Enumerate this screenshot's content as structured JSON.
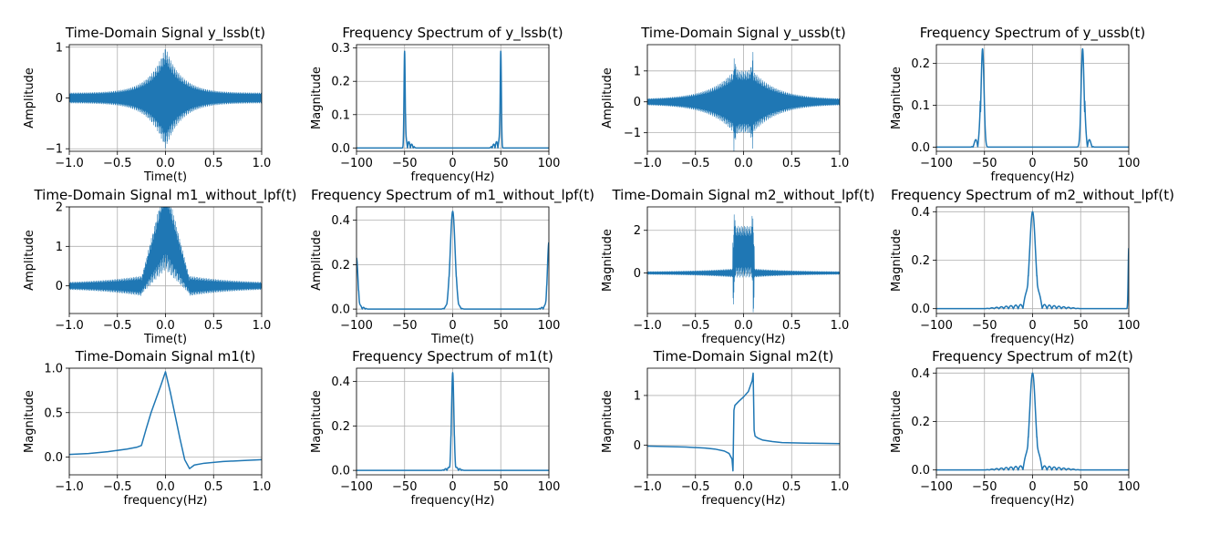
{
  "colors": {
    "series": "#1f77b4",
    "grid": "#b0b0b0"
  },
  "chart_data": [
    {
      "type": "line",
      "title": "Time-Domain Signal y_lssb(t)",
      "xlabel": "Time(t)",
      "ylabel": "Amplitude",
      "xlim": [
        -1,
        1
      ],
      "ylim": [
        -1.05,
        1.05
      ],
      "grid": true,
      "xticks": [
        -1.0,
        -0.5,
        0.0,
        0.5,
        1.0
      ],
      "xtick_labels": [
        "−1.0",
        "−0.5",
        "0.0",
        "0.5",
        "1.0"
      ],
      "yticks": [
        -1,
        0,
        1
      ],
      "ytick_labels": [
        "−1",
        "0",
        "1"
      ],
      "shape": "oscillation",
      "envelope": "exp_decay",
      "peak": 1.0,
      "tail": 0.1,
      "decay": 6,
      "center_offset": 0
    },
    {
      "type": "line",
      "title": "Frequency Spectrum of y_lssb(t)",
      "xlabel": "frequency(Hz)",
      "ylabel": "Magnitude",
      "xlim": [
        -100,
        100
      ],
      "ylim": [
        -0.01,
        0.31
      ],
      "grid": true,
      "xticks": [
        -100,
        -50,
        0,
        50,
        100
      ],
      "xtick_labels": [
        "−100",
        "−50",
        "0",
        "50",
        "100"
      ],
      "yticks": [
        0,
        0.1,
        0.2,
        0.3
      ],
      "ytick_labels": [
        "0.0",
        "0.1",
        "0.2",
        "0.3"
      ],
      "shape": "peaks",
      "baseline": 0,
      "peaks": [
        {
          "x": -50,
          "height": 0.29,
          "width": 0.6,
          "side": "right",
          "ripple": 0.03
        },
        {
          "x": 50,
          "height": 0.29,
          "width": 0.6,
          "side": "left",
          "ripple": 0.03
        }
      ]
    },
    {
      "type": "line",
      "title": "Time-Domain Signal y_ussb(t)",
      "xlabel": "",
      "ylabel": "Amplitude",
      "xlim": [
        -1,
        1
      ],
      "ylim": [
        -1.6,
        1.85
      ],
      "grid": true,
      "xticks": [
        -1.0,
        -0.5,
        0.0,
        0.5,
        1.0
      ],
      "xtick_labels": [
        "−1.0",
        "−0.5",
        "0.0",
        "0.5",
        "1.0"
      ],
      "yticks": [
        -1,
        0,
        1
      ],
      "ytick_labels": [
        "−1",
        "0",
        "1"
      ],
      "shape": "oscillation",
      "envelope": "box_decay",
      "peak": 1.7,
      "plateau": 1.0,
      "edge": 0.1,
      "tail": 0.08,
      "decay": 4
    },
    {
      "type": "line",
      "title": "Frequency Spectrum of y_ussb(t)",
      "xlabel": "frequency(Hz)",
      "ylabel": "Magnitude",
      "xlim": [
        -100,
        100
      ],
      "ylim": [
        -0.01,
        0.245
      ],
      "grid": true,
      "xticks": [
        -100,
        -50,
        0,
        50,
        100
      ],
      "xtick_labels": [
        "−100",
        "−50",
        "0",
        "50",
        "100"
      ],
      "yticks": [
        0,
        0.1,
        0.2
      ],
      "ytick_labels": [
        "0.0",
        "0.1",
        "0.2"
      ],
      "shape": "peaks",
      "baseline": 0,
      "peaks": [
        {
          "x": -52,
          "height": 0.235,
          "width": 1.5,
          "side": "left",
          "ripple": 0.045,
          "ripple_period": 5
        },
        {
          "x": 52,
          "height": 0.235,
          "width": 1.5,
          "side": "right",
          "ripple": 0.045,
          "ripple_period": 5
        }
      ]
    },
    {
      "type": "line",
      "title": "Time-Domain Signal m1_without_lpf(t)",
      "xlabel": "Time(t)",
      "ylabel": "Amplitude",
      "xlim": [
        -1,
        1
      ],
      "ylim": [
        -0.7,
        2.0
      ],
      "grid": true,
      "xticks": [
        -1.0,
        -0.5,
        0.0,
        0.5,
        1.0
      ],
      "xtick_labels": [
        "−1.0",
        "−0.5",
        "0.0",
        "0.5",
        "1.0"
      ],
      "yticks": [
        0,
        1,
        2
      ],
      "ytick_labels": [
        "0",
        "1",
        "2"
      ],
      "shape": "oscillation_offset",
      "center_line": "triangle",
      "peak": 1.9,
      "edge": 0.25,
      "amp": 0.2,
      "tail": 0.1
    },
    {
      "type": "line",
      "title": "Frequency Spectrum of m1_without_lpf(t)",
      "xlabel": "Time(t)",
      "ylabel": "Amplitude",
      "xlim": [
        -100,
        100
      ],
      "ylim": [
        -0.02,
        0.46
      ],
      "grid": true,
      "xticks": [
        -100,
        -50,
        0,
        50,
        100
      ],
      "xtick_labels": [
        "−100",
        "−50",
        "0",
        "50",
        "100"
      ],
      "yticks": [
        0,
        0.2,
        0.4
      ],
      "ytick_labels": [
        "0.0",
        "0.2",
        "0.4"
      ],
      "shape": "peaks",
      "baseline": 0,
      "peaks": [
        {
          "x": 0,
          "height": 0.44,
          "width": 2.5,
          "side": "both",
          "ripple": 0.02
        },
        {
          "x": -100,
          "height": 0.23,
          "width": 1.5,
          "side": "right",
          "ripple": 0.02
        },
        {
          "x": 100,
          "height": 0.3,
          "width": 1.5,
          "side": "left",
          "ripple": 0.02
        }
      ]
    },
    {
      "type": "line",
      "title": "Time-Domain Signal m2_without_lpf(t)",
      "xlabel": "frequency(Hz)",
      "ylabel": "Magnitude",
      "xlim": [
        -1,
        1
      ],
      "ylim": [
        -1.9,
        3.1
      ],
      "grid": true,
      "xticks": [
        -1.0,
        -0.5,
        0.0,
        0.5,
        1.0
      ],
      "xtick_labels": [
        "−1.0",
        "−0.5",
        "0.0",
        "0.5",
        "1.0"
      ],
      "yticks": [
        0,
        2
      ],
      "ytick_labels": [
        "0",
        "2"
      ],
      "shape": "oscillation_offset",
      "center_line": "box",
      "peak": 2.9,
      "plateau": 1.0,
      "edge": 0.1,
      "amp": 0.15,
      "tail": 0.08
    },
    {
      "type": "line",
      "title": "Frequency Spectrum of m2_without_lpf(t)",
      "xlabel": "frequency(Hz)",
      "ylabel": "Magnitude",
      "xlim": [
        -100,
        100
      ],
      "ylim": [
        -0.02,
        0.42
      ],
      "grid": true,
      "xticks": [
        -100,
        -50,
        0,
        50,
        100
      ],
      "xtick_labels": [
        "−100",
        "−50",
        "0",
        "50",
        "100"
      ],
      "yticks": [
        0,
        0.2,
        0.4
      ],
      "ytick_labels": [
        "0.0",
        "0.2",
        "0.4"
      ],
      "shape": "peaks",
      "baseline": 0,
      "peaks": [
        {
          "x": 0,
          "height": 0.4,
          "width": 3,
          "side": "both",
          "ripple": 0.045,
          "ripple_period": 5,
          "ripple_span": 50
        },
        {
          "x": 100,
          "height": 0.25,
          "width": 0.6,
          "side": "left",
          "ripple": 0
        }
      ]
    },
    {
      "type": "line",
      "title": "Time-Domain Signal m1(t)",
      "xlabel": "frequency(Hz)",
      "ylabel": "Magnitude",
      "xlim": [
        -1,
        1
      ],
      "ylim": [
        -0.2,
        1.0
      ],
      "grid": true,
      "xticks": [
        -1.0,
        -0.5,
        0.0,
        0.5,
        1.0
      ],
      "xtick_labels": [
        "−1.0",
        "−0.5",
        "0.0",
        "0.5",
        "1.0"
      ],
      "yticks": [
        0,
        0.5,
        1.0
      ],
      "ytick_labels": [
        "0.0",
        "0.5",
        "1.0"
      ],
      "x": [
        -1.0,
        -0.8,
        -0.6,
        -0.4,
        -0.3,
        -0.25,
        -0.2,
        -0.15,
        -0.1,
        -0.05,
        0.0,
        0.05,
        0.1,
        0.15,
        0.2,
        0.25,
        0.3,
        0.4,
        0.6,
        0.8,
        1.0
      ],
      "y": [
        0.03,
        0.04,
        0.06,
        0.09,
        0.11,
        0.13,
        0.32,
        0.5,
        0.65,
        0.8,
        0.96,
        0.73,
        0.47,
        0.21,
        -0.03,
        -0.13,
        -0.09,
        -0.07,
        -0.05,
        -0.04,
        -0.03
      ]
    },
    {
      "type": "line",
      "title": "Frequency Spectrum of m1(t)",
      "xlabel": "frequency(Hz)",
      "ylabel": "Magnitude",
      "xlim": [
        -100,
        100
      ],
      "ylim": [
        -0.02,
        0.46
      ],
      "grid": true,
      "xticks": [
        -100,
        -50,
        0,
        50,
        100
      ],
      "xtick_labels": [
        "−100",
        "−50",
        "0",
        "50",
        "100"
      ],
      "yticks": [
        0,
        0.2,
        0.4
      ],
      "ytick_labels": [
        "0.0",
        "0.2",
        "0.4"
      ],
      "shape": "peaks",
      "baseline": 0,
      "peaks": [
        {
          "x": 0,
          "height": 0.44,
          "width": 1.2,
          "side": "both",
          "ripple": 0.02
        }
      ]
    },
    {
      "type": "line",
      "title": "Time-Domain Signal m2(t)",
      "xlabel": "frequency(Hz)",
      "ylabel": "Magnitude",
      "xlim": [
        -1,
        1
      ],
      "ylim": [
        -0.6,
        1.55
      ],
      "grid": true,
      "xticks": [
        -1.0,
        -0.5,
        0.0,
        0.5,
        1.0
      ],
      "xtick_labels": [
        "−1.0",
        "−0.5",
        "0.0",
        "0.5",
        "1.0"
      ],
      "yticks": [
        0,
        1
      ],
      "ytick_labels": [
        "0",
        "1"
      ],
      "x": [
        -1.0,
        -0.6,
        -0.4,
        -0.3,
        -0.2,
        -0.15,
        -0.12,
        -0.11,
        -0.1,
        -0.09,
        -0.05,
        0.0,
        0.05,
        0.09,
        0.1,
        0.11,
        0.12,
        0.15,
        0.2,
        0.3,
        0.4,
        0.6,
        1.0
      ],
      "y": [
        -0.02,
        -0.04,
        -0.06,
        -0.08,
        -0.12,
        -0.17,
        -0.28,
        -0.52,
        0.7,
        0.8,
        0.88,
        0.97,
        1.08,
        1.3,
        1.45,
        0.3,
        0.18,
        0.14,
        0.1,
        0.07,
        0.05,
        0.04,
        0.03
      ]
    },
    {
      "type": "line",
      "title": "Frequency Spectrum of m2(t)",
      "xlabel": "frequency(Hz)",
      "ylabel": "Magnitude",
      "xlim": [
        -100,
        100
      ],
      "ylim": [
        -0.02,
        0.42
      ],
      "grid": true,
      "xticks": [
        -100,
        -50,
        0,
        50,
        100
      ],
      "xtick_labels": [
        "−100",
        "−50",
        "0",
        "50",
        "100"
      ],
      "yticks": [
        0,
        0.2,
        0.4
      ],
      "ytick_labels": [
        "0.0",
        "0.2",
        "0.4"
      ],
      "shape": "peaks",
      "baseline": 0,
      "peaks": [
        {
          "x": 0,
          "height": 0.4,
          "width": 3,
          "side": "both",
          "ripple": 0.045,
          "ripple_period": 5,
          "ripple_span": 50
        }
      ]
    }
  ]
}
